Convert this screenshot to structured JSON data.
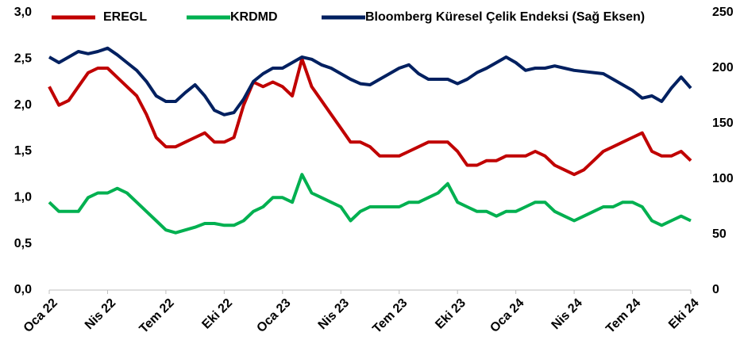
{
  "chart_data": {
    "type": "line",
    "categories": [
      "Oca 22",
      null,
      null,
      null,
      null,
      null,
      "Nis 22",
      null,
      null,
      null,
      null,
      null,
      "Tem 22",
      null,
      null,
      null,
      null,
      null,
      "Eki 22",
      null,
      null,
      null,
      null,
      null,
      "Oca 23",
      null,
      null,
      null,
      null,
      null,
      "Nis 23",
      null,
      null,
      null,
      null,
      null,
      "Tem 23",
      null,
      null,
      null,
      null,
      null,
      "Eki 23",
      null,
      null,
      null,
      null,
      null,
      "Oca 24",
      null,
      null,
      null,
      null,
      null,
      "Nis 24",
      null,
      null,
      null,
      null,
      null,
      "Tem 24",
      null,
      null,
      null,
      null,
      null,
      "Eki 24"
    ],
    "series": [
      {
        "name": "EREGL",
        "color": "#c00000",
        "axis": "y",
        "values": [
          2.2,
          2.0,
          2.05,
          2.2,
          2.35,
          2.4,
          2.4,
          2.3,
          2.2,
          2.1,
          1.9,
          1.65,
          1.55,
          1.55,
          1.6,
          1.65,
          1.7,
          1.6,
          1.6,
          1.65,
          2.0,
          2.25,
          2.2,
          2.25,
          2.2,
          2.1,
          2.5,
          2.2,
          2.05,
          1.9,
          1.75,
          1.6,
          1.6,
          1.55,
          1.45,
          1.45,
          1.45,
          1.5,
          1.55,
          1.6,
          1.6,
          1.6,
          1.5,
          1.35,
          1.35,
          1.4,
          1.4,
          1.45,
          1.45,
          1.45,
          1.5,
          1.45,
          1.35,
          1.3,
          1.25,
          1.3,
          1.4,
          1.5,
          1.55,
          1.6,
          1.65,
          1.7,
          1.5,
          1.45,
          1.45,
          1.5,
          1.4
        ]
      },
      {
        "name": "KRDMD",
        "color": "#00b050",
        "axis": "y",
        "values": [
          0.95,
          0.85,
          0.85,
          0.85,
          1.0,
          1.05,
          1.05,
          1.1,
          1.05,
          0.95,
          0.85,
          0.75,
          0.65,
          0.62,
          0.65,
          0.68,
          0.72,
          0.72,
          0.7,
          0.7,
          0.75,
          0.85,
          0.9,
          1.0,
          1.0,
          0.95,
          1.25,
          1.05,
          1.0,
          0.95,
          0.9,
          0.75,
          0.85,
          0.9,
          0.9,
          0.9,
          0.9,
          0.95,
          0.95,
          1.0,
          1.05,
          1.15,
          0.95,
          0.9,
          0.85,
          0.85,
          0.8,
          0.85,
          0.85,
          0.9,
          0.95,
          0.95,
          0.85,
          0.8,
          0.75,
          0.8,
          0.85,
          0.9,
          0.9,
          0.95,
          0.95,
          0.9,
          0.75,
          0.7,
          0.75,
          0.8,
          0.75
        ]
      },
      {
        "name": "Bloomberg Küresel Çelik Endeksi (Sağ Eksen)",
        "color": "#002060",
        "axis": "y2",
        "values": [
          210,
          205,
          210,
          215,
          213,
          215,
          218,
          212,
          205,
          198,
          188,
          175,
          170,
          170,
          178,
          185,
          175,
          162,
          158,
          160,
          172,
          188,
          195,
          200,
          200,
          205,
          210,
          208,
          203,
          200,
          195,
          190,
          186,
          185,
          190,
          195,
          200,
          203,
          195,
          190,
          190,
          190,
          186,
          190,
          196,
          200,
          205,
          210,
          205,
          198,
          200,
          200,
          202,
          200,
          198,
          197,
          196,
          195,
          190,
          185,
          180,
          173,
          175,
          170,
          182,
          192,
          182
        ]
      }
    ],
    "ylim": [
      0,
      3
    ],
    "yticks": [
      {
        "value": 0,
        "label": "0,0"
      },
      {
        "value": 0.5,
        "label": "0,5"
      },
      {
        "value": 1,
        "label": "1,0"
      },
      {
        "value": 1.5,
        "label": "1,5"
      },
      {
        "value": 2,
        "label": "2,0"
      },
      {
        "value": 2.5,
        "label": "2,5"
      },
      {
        "value": 3,
        "label": "3,0"
      }
    ],
    "y2lim": [
      0,
      250
    ],
    "y2ticks": [
      0,
      50,
      100,
      150,
      200,
      250
    ],
    "grid": false,
    "legend": "top"
  }
}
